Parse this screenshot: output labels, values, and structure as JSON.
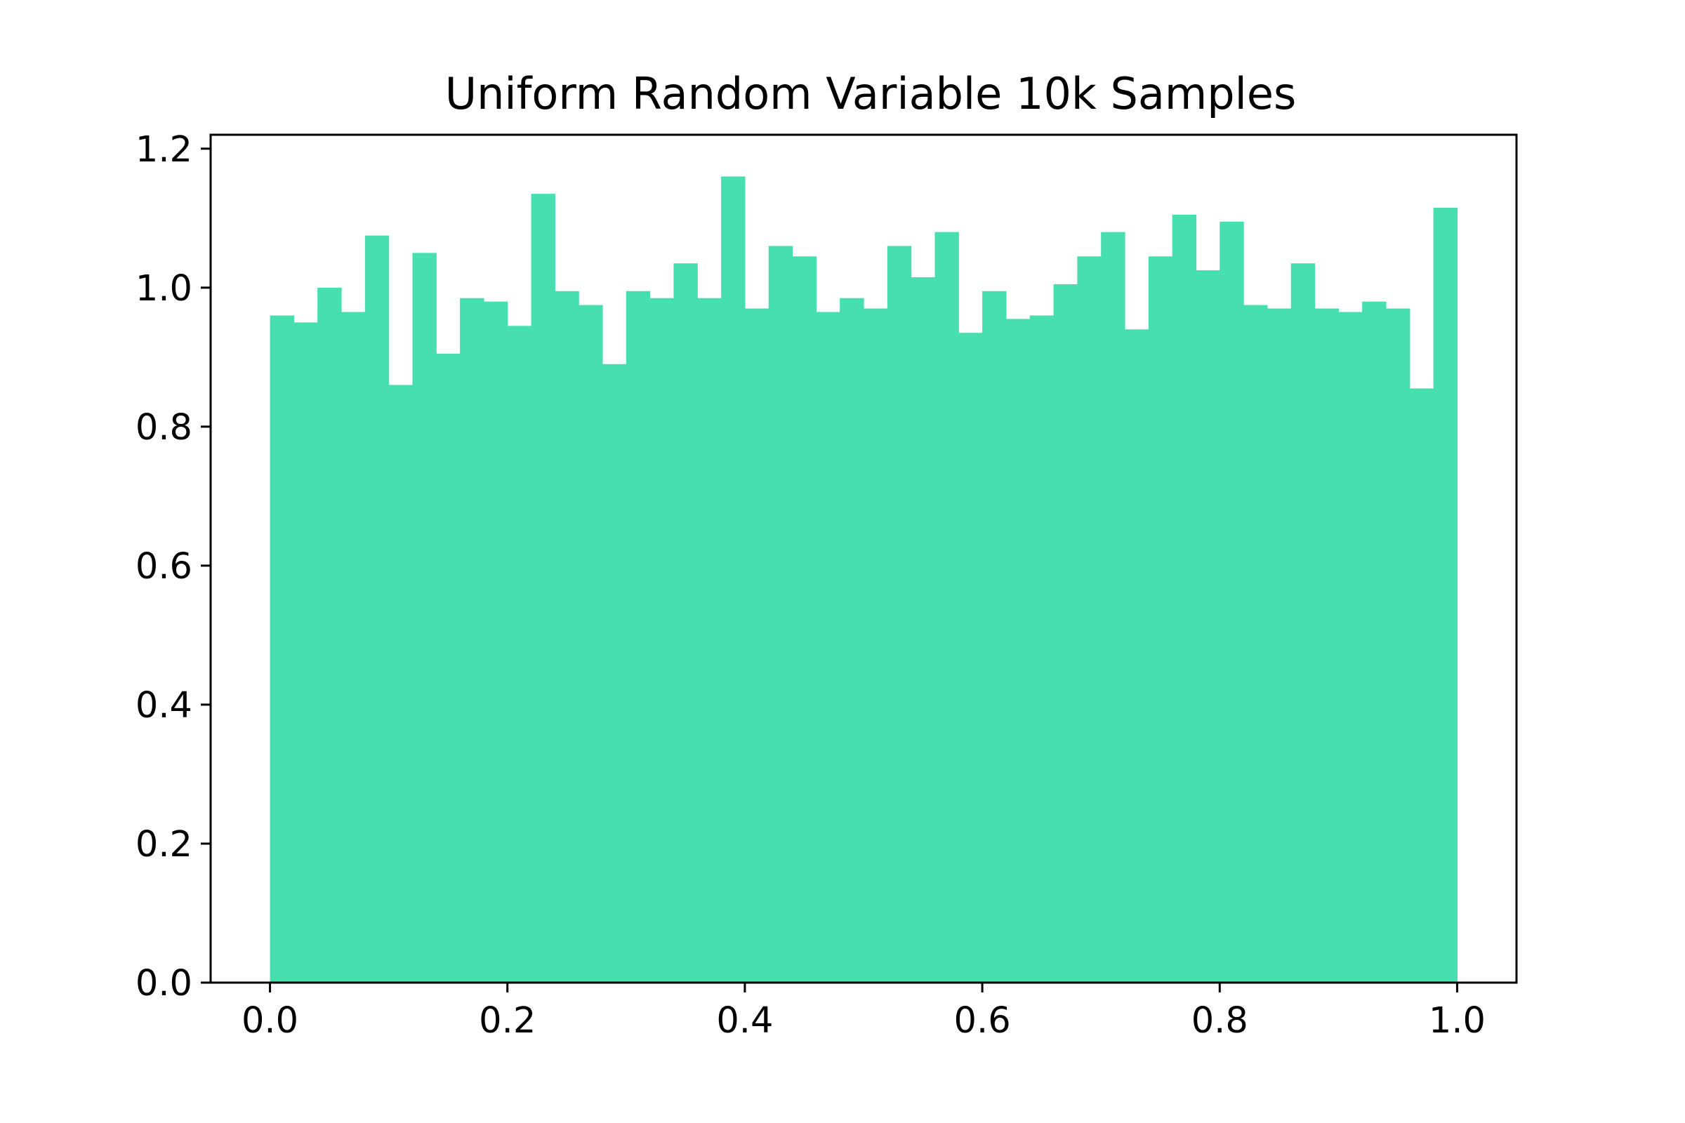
{
  "chart_data": {
    "type": "bar",
    "title": "Uniform Random Variable 10k Samples",
    "xlabel": "",
    "ylabel": "",
    "xlim": [
      -0.05,
      1.05
    ],
    "ylim": [
      0,
      1.22
    ],
    "x_ticks": [
      "0.0",
      "0.2",
      "0.4",
      "0.6",
      "0.8",
      "1.0"
    ],
    "y_ticks": [
      "0.0",
      "0.2",
      "0.4",
      "0.6",
      "0.8",
      "1.0",
      "1.2"
    ],
    "grid": false,
    "legend": "none",
    "bar_color": "#48dfb0",
    "bin_width": 0.02,
    "bin_starts": [
      0.0,
      0.02,
      0.04,
      0.06,
      0.08,
      0.1,
      0.12,
      0.14,
      0.16,
      0.18,
      0.2,
      0.22,
      0.24,
      0.26,
      0.28,
      0.3,
      0.32,
      0.34,
      0.36,
      0.38,
      0.4,
      0.42,
      0.44,
      0.46,
      0.48,
      0.5,
      0.52,
      0.54,
      0.56,
      0.58,
      0.6,
      0.62,
      0.64,
      0.66,
      0.68,
      0.7,
      0.72,
      0.74,
      0.76,
      0.78,
      0.8,
      0.82,
      0.84,
      0.86,
      0.88,
      0.9,
      0.92,
      0.94,
      0.96,
      0.98
    ],
    "values": [
      0.96,
      0.95,
      1.0,
      0.965,
      1.075,
      0.86,
      1.05,
      0.905,
      0.985,
      0.98,
      0.945,
      1.135,
      0.995,
      0.975,
      0.89,
      0.995,
      0.985,
      1.035,
      0.985,
      1.16,
      0.97,
      1.06,
      1.045,
      0.965,
      0.985,
      0.97,
      1.06,
      1.015,
      1.08,
      0.935,
      0.995,
      0.955,
      0.96,
      1.005,
      1.045,
      1.08,
      0.94,
      1.045,
      1.105,
      1.025,
      1.095,
      0.975,
      0.97,
      1.035,
      0.97,
      0.965,
      0.98,
      0.97,
      0.855,
      1.115
    ]
  }
}
